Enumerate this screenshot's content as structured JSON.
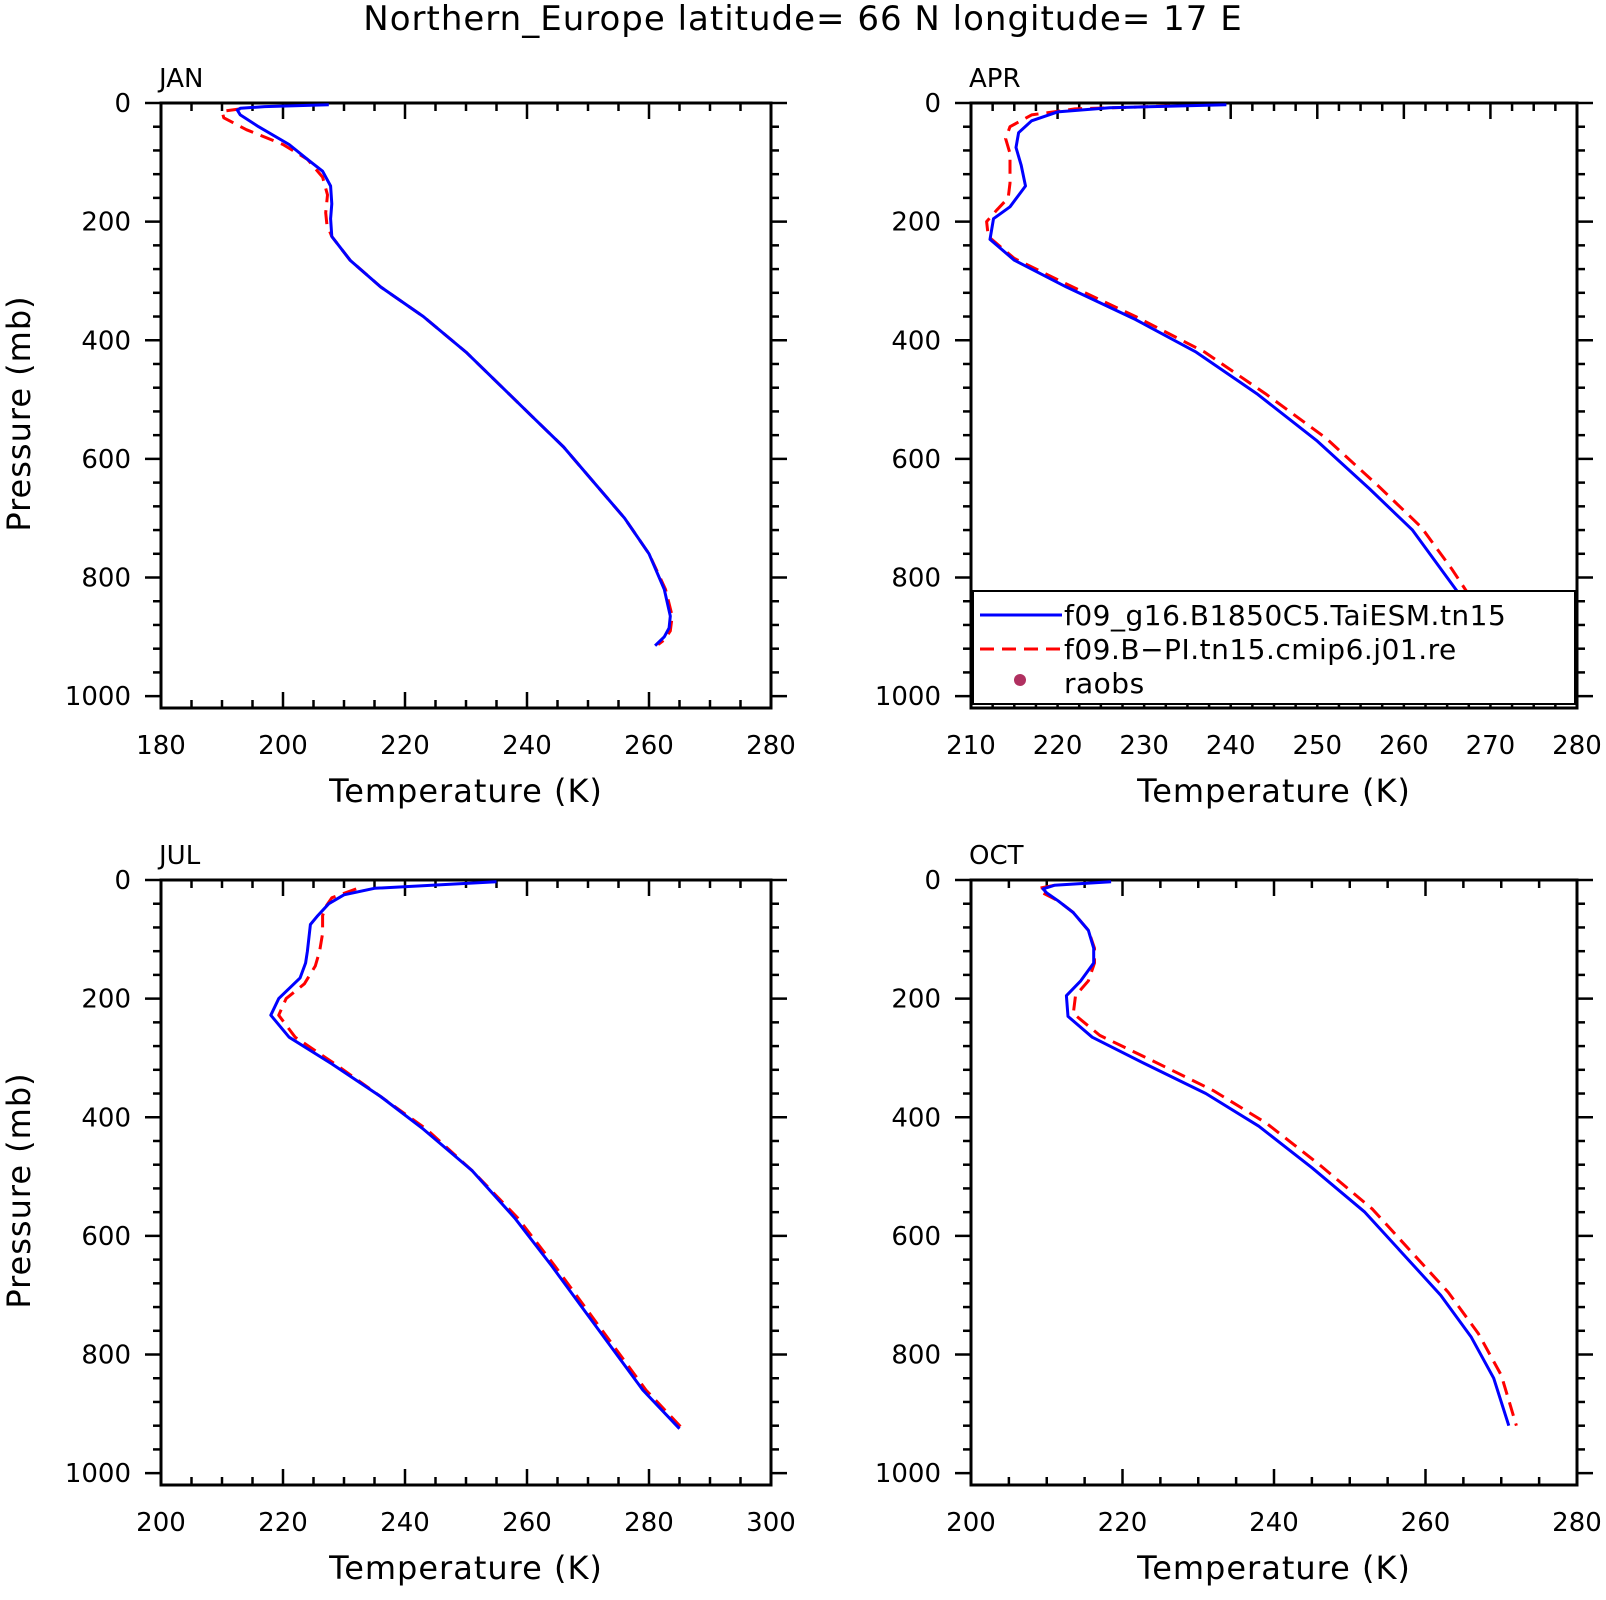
{
  "title": "Northern_Europe  latitude= 66 N longitude= 17 E",
  "colors": {
    "model1": "#0000ff",
    "model2": "#ff0000",
    "raobs": "#b03060"
  },
  "legend": {
    "entries": [
      {
        "label": "f09_g16.B1850C5.TaiESM.tn15",
        "style": "solid",
        "color": "#0000ff"
      },
      {
        "label": "f09.B−PI.tn15.cmip6.j01.re",
        "style": "dashed",
        "color": "#ff0000"
      },
      {
        "label": "raobs",
        "style": "dot",
        "color": "#b03060"
      }
    ]
  },
  "chart_data": [
    {
      "type": "line",
      "panel": "JAN",
      "xlabel": "Temperature (K)",
      "ylabel": "Pressure (mb)",
      "xlim": [
        180,
        280
      ],
      "xticks": [
        180,
        200,
        220,
        240,
        260,
        280
      ],
      "ylim": [
        0,
        1020
      ],
      "yticks": [
        0,
        200,
        400,
        600,
        800,
        1000
      ],
      "y_inverted": true,
      "series": [
        {
          "name": "f09_g16.B1850C5.TaiESM.tn15",
          "style": "solid",
          "points": [
            [
              207.5,
              3
            ],
            [
              197,
              6
            ],
            [
              193,
              9
            ],
            [
              192.5,
              12
            ],
            [
              193,
              20
            ],
            [
              196,
              40
            ],
            [
              201,
              70
            ],
            [
              204,
              95
            ],
            [
              206.5,
              115
            ],
            [
              207.8,
              140
            ],
            [
              208,
              170
            ],
            [
              207.8,
              195
            ],
            [
              208,
              225
            ],
            [
              211,
              265
            ],
            [
              216,
              310
            ],
            [
              223,
              360
            ],
            [
              230,
              420
            ],
            [
              236,
              480
            ],
            [
              241,
              530
            ],
            [
              246,
              580
            ],
            [
              251,
              640
            ],
            [
              256,
              700
            ],
            [
              260,
              760
            ],
            [
              262.5,
              820
            ],
            [
              263.5,
              865
            ],
            [
              263.3,
              885
            ],
            [
              262.5,
              900
            ],
            [
              261,
              915
            ]
          ]
        },
        {
          "name": "f09.B−PI.tn15.cmip6.j01.re",
          "style": "dashed",
          "points": [
            [
              193,
              10
            ],
            [
              190,
              14
            ],
            [
              190.3,
              25
            ],
            [
              194,
              45
            ],
            [
              200,
              70
            ],
            [
              204,
              95
            ],
            [
              206.5,
              125
            ],
            [
              207.3,
              155
            ],
            [
              207,
              185
            ],
            [
              207.2,
              205
            ],
            [
              208,
              225
            ],
            [
              211,
              265
            ],
            [
              216,
              310
            ],
            [
              223,
              360
            ],
            [
              230,
              420
            ],
            [
              236,
              480
            ],
            [
              241,
              530
            ],
            [
              246,
              580
            ],
            [
              251,
              640
            ],
            [
              256,
              700
            ],
            [
              260,
              760
            ],
            [
              262.7,
              820
            ],
            [
              263.8,
              865
            ],
            [
              263.5,
              890
            ],
            [
              262.5,
              905
            ],
            [
              261.5,
              913
            ]
          ]
        }
      ]
    },
    {
      "type": "line",
      "panel": "APR",
      "xlabel": "Temperature (K)",
      "ylabel": "",
      "xlim": [
        210,
        280
      ],
      "xticks": [
        210,
        220,
        230,
        240,
        250,
        260,
        270,
        280
      ],
      "ylim": [
        0,
        1020
      ],
      "yticks": [
        0,
        200,
        400,
        600,
        800,
        1000
      ],
      "y_inverted": true,
      "series": [
        {
          "name": "f09_g16.B1850C5.TaiESM.tn15",
          "style": "solid",
          "points": [
            [
              239.5,
              3
            ],
            [
              226,
              8
            ],
            [
              220,
              15
            ],
            [
              217,
              30
            ],
            [
              215.5,
              50
            ],
            [
              215.2,
              75
            ],
            [
              215.8,
              105
            ],
            [
              216.3,
              140
            ],
            [
              214.5,
              175
            ],
            [
              212.6,
              195
            ],
            [
              212.2,
              230
            ],
            [
              215,
              265
            ],
            [
              221,
              310
            ],
            [
              229,
              365
            ],
            [
              236,
              420
            ],
            [
              243,
              490
            ],
            [
              250,
              570
            ],
            [
              256,
              650
            ],
            [
              261,
              720
            ],
            [
              264.5,
              790
            ],
            [
              267,
              840
            ],
            [
              269.5,
              910
            ]
          ]
        },
        {
          "name": "f09.B−PI.tn15.cmip6.j01.re",
          "style": "dashed",
          "points": [
            [
              233,
              5
            ],
            [
              222,
              10
            ],
            [
              217,
              20
            ],
            [
              214.5,
              40
            ],
            [
              214,
              60
            ],
            [
              214.5,
              85
            ],
            [
              214.5,
              110
            ],
            [
              214.5,
              135
            ],
            [
              214.3,
              160
            ],
            [
              213,
              180
            ],
            [
              211.8,
              200
            ],
            [
              212,
              225
            ],
            [
              215,
              262
            ],
            [
              221,
              305
            ],
            [
              229,
              360
            ],
            [
              237,
              420
            ],
            [
              244,
              490
            ],
            [
              251,
              565
            ],
            [
              257,
              645
            ],
            [
              262,
              715
            ],
            [
              265.5,
              785
            ],
            [
              268,
              840
            ],
            [
              270.5,
              905
            ]
          ]
        }
      ]
    },
    {
      "type": "line",
      "panel": "JUL",
      "xlabel": "Temperature (K)",
      "ylabel": "Pressure (mb)",
      "xlim": [
        200,
        300
      ],
      "xticks": [
        200,
        220,
        240,
        260,
        280,
        300
      ],
      "ylim": [
        0,
        1020
      ],
      "yticks": [
        0,
        200,
        400,
        600,
        800,
        1000
      ],
      "y_inverted": true,
      "series": [
        {
          "name": "f09_g16.B1850C5.TaiESM.tn15",
          "style": "solid",
          "points": [
            [
              255,
              3
            ],
            [
              235,
              14
            ],
            [
              230,
              25
            ],
            [
              227.5,
              40
            ],
            [
              225.7,
              60
            ],
            [
              224.5,
              75
            ],
            [
              224,
              120
            ],
            [
              223.7,
              140
            ],
            [
              222.8,
              165
            ],
            [
              219.3,
              200
            ],
            [
              218,
              228
            ],
            [
              221,
              265
            ],
            [
              228,
              310
            ],
            [
              236,
              365
            ],
            [
              243,
              420
            ],
            [
              251,
              490
            ],
            [
              258,
              570
            ],
            [
              264,
              650
            ],
            [
              269,
              720
            ],
            [
              274,
              790
            ],
            [
              279,
              860
            ],
            [
              285,
              925
            ]
          ]
        },
        {
          "name": "f09.B−PI.tn15.cmip6.j01.re",
          "style": "dashed",
          "points": [
            [
              232,
              15
            ],
            [
              228,
              30
            ],
            [
              227,
              45
            ],
            [
              226.5,
              60
            ],
            [
              226.5,
              90
            ],
            [
              226,
              120
            ],
            [
              225.3,
              145
            ],
            [
              223.5,
              175
            ],
            [
              220.5,
              200
            ],
            [
              219.3,
              228
            ],
            [
              222,
              265
            ],
            [
              228.5,
              310
            ],
            [
              236,
              365
            ],
            [
              243.5,
              420
            ],
            [
              251,
              490
            ],
            [
              258.5,
              570
            ],
            [
              264.5,
              650
            ],
            [
              269.5,
              720
            ],
            [
              274.5,
              790
            ],
            [
              279.5,
              860
            ],
            [
              285.5,
              925
            ]
          ]
        }
      ]
    },
    {
      "type": "line",
      "panel": "OCT",
      "xlabel": "Temperature (K)",
      "ylabel": "",
      "xlim": [
        200,
        280
      ],
      "xticks": [
        200,
        220,
        240,
        260,
        280
      ],
      "ylim": [
        0,
        1020
      ],
      "yticks": [
        0,
        200,
        400,
        600,
        800,
        1000
      ],
      "y_inverted": true,
      "series": [
        {
          "name": "f09_g16.B1850C5.TaiESM.tn15",
          "style": "solid",
          "points": [
            [
              218.5,
              3
            ],
            [
              211,
              9
            ],
            [
              209.5,
              15
            ],
            [
              210,
              22
            ],
            [
              211.5,
              35
            ],
            [
              213.5,
              55
            ],
            [
              215.5,
              85
            ],
            [
              216.2,
              115
            ],
            [
              216.2,
              140
            ],
            [
              214.5,
              170
            ],
            [
              212.6,
              195
            ],
            [
              212.8,
              230
            ],
            [
              216,
              265
            ],
            [
              223,
              310
            ],
            [
              231,
              360
            ],
            [
              238,
              415
            ],
            [
              245,
              485
            ],
            [
              252,
              560
            ],
            [
              257,
              630
            ],
            [
              262,
              700
            ],
            [
              266,
              770
            ],
            [
              269,
              840
            ],
            [
              271,
              920
            ]
          ]
        },
        {
          "name": "f09.B−PI.tn15.cmip6.j01.re",
          "style": "dashed",
          "points": [
            [
              211,
              9
            ],
            [
              209,
              14
            ],
            [
              209.5,
              22
            ],
            [
              211.5,
              35
            ],
            [
              213.5,
              55
            ],
            [
              215.5,
              85
            ],
            [
              216.3,
              115
            ],
            [
              216.3,
              140
            ],
            [
              215.5,
              170
            ],
            [
              213.8,
              195
            ],
            [
              213.5,
              225
            ],
            [
              217,
              262
            ],
            [
              224,
              305
            ],
            [
              232,
              355
            ],
            [
              239,
              410
            ],
            [
              246,
              480
            ],
            [
              253,
              555
            ],
            [
              258,
              625
            ],
            [
              263,
              695
            ],
            [
              267,
              765
            ],
            [
              270,
              835
            ],
            [
              272,
              920
            ]
          ]
        }
      ]
    }
  ]
}
